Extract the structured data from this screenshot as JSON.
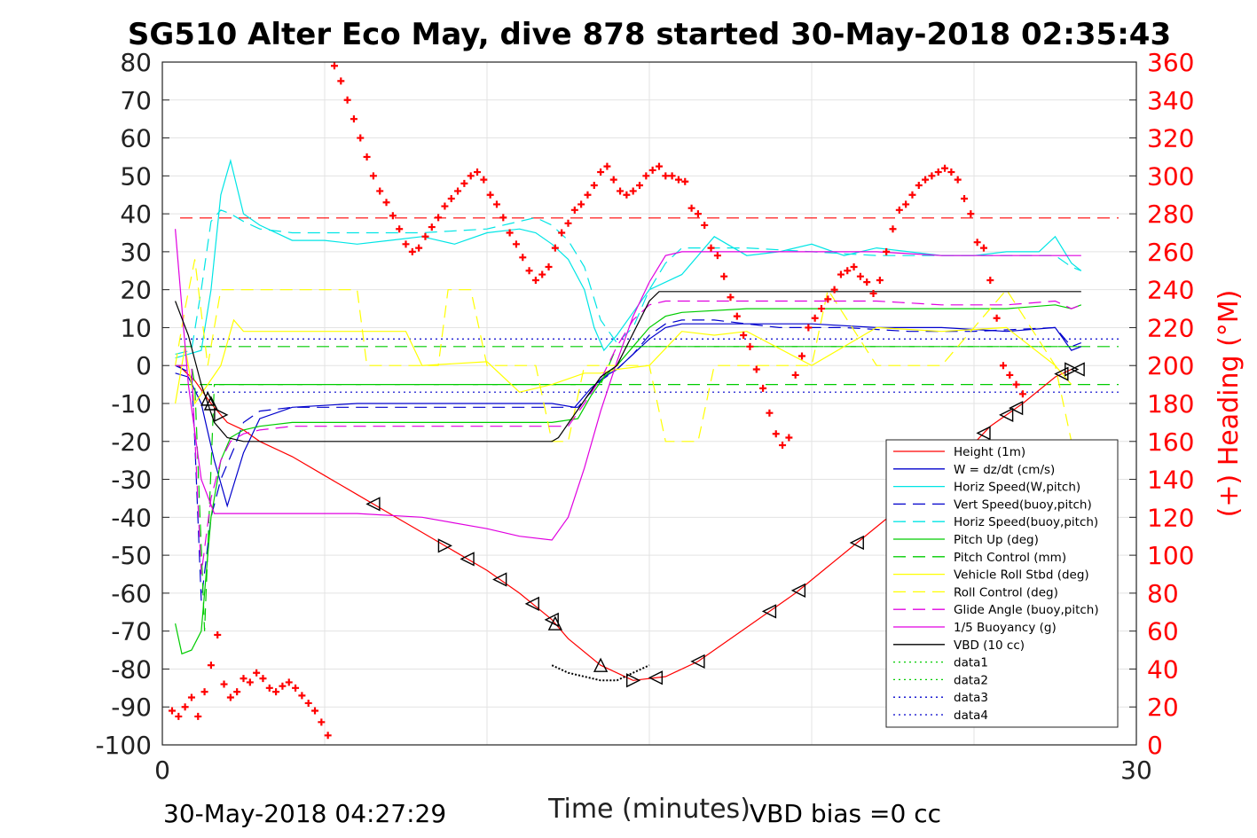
{
  "chart_data": {
    "type": "line",
    "title": "SG510 Alter Eco May, dive 878 started 30-May-2018 02:35:43",
    "xlabel": "Time (minutes)",
    "ylabel": "",
    "y2label": "(+) Heading (°M)",
    "xlim": [
      0,
      30
    ],
    "ylim": [
      -100,
      80
    ],
    "y2lim": [
      0,
      360
    ],
    "x_ticks": [
      "0",
      "30"
    ],
    "y_ticks": [
      "80",
      "70",
      "60",
      "50",
      "40",
      "30",
      "20",
      "10",
      "0",
      "-10",
      "-20",
      "-30",
      "-40",
      "-50",
      "-60",
      "-70",
      "-80",
      "-90",
      "-100"
    ],
    "y2_ticks": [
      "360",
      "340",
      "320",
      "300",
      "280",
      "260",
      "240",
      "220",
      "200",
      "180",
      "160",
      "140",
      "120",
      "100",
      "80",
      "60",
      "40",
      "20",
      "0"
    ],
    "footer_left": "30-May-2018 04:27:29",
    "footer_right": "VBD bias =0 cc",
    "grid": true,
    "legend_position": "bottom-right",
    "colors": {
      "red": "#ff0000",
      "blue": "#0000cc",
      "cyan": "#00e5e5",
      "green": "#00cc00",
      "yellow": "#ffff00",
      "magenta": "#e000e0",
      "black": "#000000"
    },
    "reference_lines": [
      {
        "y": 7,
        "color": "#0000cc",
        "style": "dotted"
      },
      {
        "y": -7,
        "color": "#0000cc",
        "style": "dotted"
      },
      {
        "y": 5,
        "color": "#00cc00",
        "style": "dashed"
      },
      {
        "y": -5,
        "color": "#00cc00",
        "style": "dashed"
      },
      {
        "y": 38.9,
        "color": "#ff0000",
        "style": "dashed"
      }
    ],
    "series": [
      {
        "name": "Height (1m)",
        "color": "#ff0000",
        "style": "solid",
        "axis": "left",
        "x": [
          0.5,
          1.0,
          1.5,
          2.0,
          2.5,
          3.0,
          4.0,
          5.0,
          6.0,
          7.0,
          8.0,
          9.0,
          10.0,
          11.0,
          12.0,
          12.5,
          13.5,
          14.5,
          15.5,
          16.5,
          17.5,
          18.5,
          19.5,
          20.5,
          21.5,
          22.5,
          23.5,
          24.5,
          25.5,
          26.5,
          27.5,
          28.0
        ],
        "y": [
          0,
          -4,
          -10,
          -15,
          -17,
          -20,
          -24,
          -29,
          -34,
          -39,
          -44,
          -49,
          -54,
          -60,
          -67,
          -72,
          -79,
          -83,
          -82,
          -78,
          -72,
          -66,
          -60,
          -53,
          -46,
          -39,
          -33,
          -25,
          -16,
          -10,
          -3,
          -1
        ]
      },
      {
        "name": "W = dz/dt (cm/s)",
        "color": "#0000cc",
        "style": "solid",
        "axis": "left",
        "x": [
          0.4,
          0.8,
          1.2,
          1.6,
          2.0,
          2.5,
          3.0,
          4.0,
          6.0,
          8.0,
          10.0,
          12.0,
          12.7,
          13.2,
          13.6,
          14.0,
          14.5,
          15.0,
          15.5,
          16.0,
          17.0,
          18.0,
          20.0,
          22.0,
          24.0,
          26.0,
          27.5,
          28.0,
          28.3
        ],
        "y": [
          -2,
          -3,
          -10,
          -25,
          -37,
          -23,
          -14,
          -11,
          -10,
          -10,
          -10,
          -10,
          -11,
          -6,
          -3,
          -1,
          3,
          7,
          10,
          11,
          11,
          11,
          11,
          10,
          10,
          9,
          10,
          4,
          5
        ]
      },
      {
        "name": "Horiz Speed(W,pitch)",
        "color": "#00e5e5",
        "style": "solid",
        "axis": "left",
        "x": [
          0.4,
          0.8,
          1.2,
          1.5,
          1.8,
          2.1,
          2.5,
          3.0,
          4.0,
          5.0,
          6.0,
          7.0,
          8.0,
          9.0,
          10.0,
          11.0,
          11.5,
          12.0,
          12.5,
          13.0,
          13.3,
          13.6,
          14.0,
          14.5,
          15.0,
          16.0,
          17.0,
          18.0,
          19.0,
          20.0,
          21.0,
          22.0,
          23.0,
          24.0,
          25.0,
          26.0,
          27.0,
          27.5,
          28.0,
          28.3
        ],
        "y": [
          2,
          3,
          4,
          20,
          45,
          54,
          40,
          37,
          33,
          33,
          32,
          33,
          34,
          32,
          35,
          36,
          35,
          32,
          28,
          20,
          10,
          4,
          8,
          14,
          20,
          24,
          34,
          29,
          30,
          32,
          29,
          31,
          30,
          29,
          29,
          30,
          30,
          34,
          27,
          25
        ]
      },
      {
        "name": "Vert Speed(buoy,pitch)",
        "color": "#0000cc",
        "style": "dashed",
        "axis": "left",
        "x": [
          0.4,
          0.9,
          1.0,
          1.2,
          1.5,
          1.8,
          2.2,
          2.5,
          3.0,
          4.0,
          6.0,
          8.0,
          10.0,
          12.0,
          12.8,
          13.5,
          14.0,
          14.5,
          15.0,
          15.5,
          16.0,
          17.0,
          19.0,
          21.0,
          23.0,
          25.0,
          27.5,
          28.0,
          28.3
        ],
        "y": [
          0,
          -2,
          -20,
          -62,
          -40,
          -30,
          -22,
          -15,
          -12,
          -11,
          -11,
          -11,
          -11,
          -11,
          -11,
          -4,
          -1,
          3,
          8,
          11,
          12,
          12,
          10,
          10,
          9,
          9,
          10,
          5,
          6
        ]
      },
      {
        "name": "Horiz Speed(buoy,pitch)",
        "color": "#00e5e5",
        "style": "dashed",
        "axis": "left",
        "x": [
          0.4,
          0.9,
          1.2,
          1.5,
          1.8,
          2.1,
          2.5,
          3.0,
          4.0,
          6.0,
          8.0,
          10.0,
          11.5,
          12.0,
          12.5,
          13.0,
          13.5,
          14.0,
          14.5,
          15.0,
          15.5,
          16.0,
          18.0,
          20.0,
          22.0,
          24.0,
          26.0,
          27.5,
          28.0,
          28.3
        ],
        "y": [
          3,
          4,
          20,
          38,
          41,
          40,
          38,
          36,
          35,
          35,
          35,
          36,
          39,
          37,
          33,
          26,
          12,
          6,
          10,
          20,
          27,
          31,
          31,
          30,
          29,
          29,
          29,
          29,
          26,
          25
        ]
      },
      {
        "name": "Pitch Up (deg)",
        "color": "#00cc00",
        "style": "solid",
        "axis": "left",
        "x": [
          0.4,
          0.6,
          0.9,
          1.2,
          1.5,
          1.8,
          2.1,
          2.5,
          3.0,
          4.0,
          6.0,
          8.0,
          10.0,
          12.0,
          12.8,
          13.2,
          13.6,
          14.0,
          14.5,
          15.0,
          15.5,
          16.0,
          18.0,
          20.0,
          22.0,
          24.0,
          26.0,
          27.5,
          28.0,
          28.3
        ],
        "y": [
          -68,
          -76,
          -75,
          -70,
          -40,
          -25,
          -19,
          -17,
          -16,
          -15,
          -15,
          -15,
          -15,
          -15,
          -14,
          -8,
          -3,
          0,
          5,
          10,
          13,
          14,
          15,
          15,
          15,
          15,
          15,
          16,
          15,
          16
        ]
      },
      {
        "name": "Pitch Control (mm)",
        "color": "#00cc00",
        "style": "dashed",
        "axis": "left",
        "x": [
          0.4,
          0.9,
          1.0,
          1.3,
          1.6,
          2.0,
          2.5,
          12.0,
          12.5,
          13.5,
          14.0,
          28.3
        ],
        "y": [
          0,
          0,
          -5,
          -70,
          -5,
          -5,
          -5,
          -5,
          -5,
          -5,
          5,
          5
        ]
      },
      {
        "name": "Vehicle Roll Stbd (deg)",
        "color": "#ffff00",
        "style": "solid",
        "axis": "left",
        "x": [
          0.4,
          0.7,
          1.0,
          1.4,
          1.8,
          2.2,
          2.5,
          3.0,
          4.0,
          6.0,
          7.5,
          8.0,
          10.0,
          11.0,
          12.0,
          13.0,
          13.5,
          14.0,
          15.0,
          16.0,
          17.0,
          18.0,
          20.0,
          22.0,
          24.0,
          26.0,
          27.5,
          28.0
        ],
        "y": [
          -10,
          5,
          -10,
          -5,
          0,
          12,
          9,
          9,
          9,
          9,
          9,
          0,
          1,
          -7,
          -5,
          -2,
          -2,
          -1,
          0,
          9,
          8,
          9,
          0,
          10,
          9,
          10,
          0,
          -5
        ]
      },
      {
        "name": "Roll Control (deg)",
        "color": "#ffff00",
        "style": "dashed",
        "axis": "left",
        "x": [
          0.4,
          0.7,
          1.0,
          1.4,
          1.8,
          2.2,
          2.5,
          6.0,
          6.3,
          8.5,
          8.8,
          9.5,
          10.0,
          11.5,
          12.0,
          12.5,
          13.0,
          15.0,
          15.5,
          16.5,
          17.0,
          20.0,
          20.5,
          22.0,
          24.0,
          26.0,
          27.5,
          28.0
        ],
        "y": [
          0,
          15,
          28,
          0,
          20,
          20,
          20,
          20,
          0,
          0,
          20,
          20,
          0,
          0,
          -20,
          -20,
          0,
          0,
          -20,
          -20,
          0,
          0,
          20,
          0,
          0,
          20,
          0,
          -20
        ]
      },
      {
        "name": "Glide Angle (buoy,pitch)",
        "color": "#e000e0",
        "style": "dashed",
        "axis": "left",
        "x": [
          0.4,
          0.9,
          1.2,
          1.5,
          1.8,
          2.1,
          2.5,
          3.0,
          4.0,
          6.0,
          8.0,
          10.0,
          12.0,
          12.5,
          13.0,
          13.6,
          14.0,
          14.5,
          15.0,
          15.5,
          16.0,
          18.0,
          20.0,
          22.0,
          24.0,
          26.0,
          27.5,
          28.0,
          28.3
        ],
        "y": [
          0,
          0,
          -55,
          -35,
          -25,
          -20,
          -18,
          -17,
          -16,
          -16,
          -16,
          -16,
          -16,
          -16,
          -10,
          -2,
          5,
          12,
          16,
          17,
          17,
          17,
          17,
          17,
          16,
          16,
          17,
          15,
          16
        ]
      },
      {
        "name": "1/5 Buoyancy (g)",
        "color": "#e000e0",
        "style": "solid",
        "axis": "left",
        "x": [
          0.4,
          0.8,
          1.2,
          1.6,
          2.0,
          2.3,
          2.5,
          3.0,
          4.0,
          6.0,
          8.0,
          10.0,
          11.0,
          12.0,
          12.5,
          13.0,
          13.5,
          14.0,
          14.5,
          15.0,
          15.5,
          16.0,
          18.0,
          20.0,
          22.0,
          24.0,
          26.0,
          28.0,
          28.3
        ],
        "y": [
          36,
          -5,
          -30,
          -39,
          -39,
          -39,
          -39,
          -39,
          -39,
          -39,
          -40,
          -43,
          -45,
          -46,
          -40,
          -27,
          -12,
          1,
          13,
          22,
          29,
          30,
          30,
          30,
          30,
          29,
          29,
          29,
          29
        ]
      },
      {
        "name": "VBD (10 cc)",
        "color": "#000000",
        "style": "solid",
        "axis": "left",
        "x": [
          0.4,
          0.8,
          1.2,
          1.6,
          2.0,
          2.5,
          3.0,
          6.0,
          9.0,
          12.0,
          12.2,
          13.5,
          14.0,
          15.0,
          15.3,
          18.0,
          22.0,
          26.0,
          28.3
        ],
        "y": [
          17,
          8,
          -5,
          -15,
          -19,
          -20,
          -20,
          -20,
          -20,
          -20,
          -19,
          -3,
          0,
          17,
          19.5,
          19.5,
          19.5,
          19.5,
          19.5
        ]
      },
      {
        "name": "data1",
        "color": "#00cc00",
        "style": "dotted",
        "axis": "left",
        "x": [],
        "y": []
      },
      {
        "name": "data2",
        "color": "#00cc00",
        "style": "dotted",
        "axis": "left",
        "x": [],
        "y": []
      },
      {
        "name": "data3",
        "color": "#0000cc",
        "style": "dotted",
        "axis": "left",
        "x": [],
        "y": []
      },
      {
        "name": "data4",
        "color": "#0000cc",
        "style": "dotted",
        "axis": "left",
        "x": [],
        "y": []
      }
    ],
    "bottom_trace": {
      "color": "#000000",
      "style": "dotted",
      "axis": "left",
      "x": [
        12.0,
        12.5,
        13.0,
        13.5,
        14.0,
        14.5,
        15.0
      ],
      "y": [
        -79,
        -81,
        -82,
        -83,
        -83,
        -81,
        -79
      ]
    },
    "heading": {
      "color": "#ff0000",
      "marker": "+",
      "axis": "right",
      "x": [
        0.3,
        0.5,
        0.7,
        0.9,
        1.1,
        1.3,
        1.5,
        1.7,
        1.9,
        2.1,
        2.3,
        2.5,
        2.7,
        2.9,
        3.1,
        3.3,
        3.5,
        3.7,
        3.9,
        4.1,
        4.3,
        4.5,
        4.7,
        4.9,
        5.1,
        5.3,
        5.5,
        5.7,
        5.9,
        6.1,
        6.3,
        6.5,
        6.7,
        6.9,
        7.1,
        7.3,
        7.5,
        7.7,
        7.9,
        8.1,
        8.3,
        8.5,
        8.7,
        8.9,
        9.1,
        9.3,
        9.5,
        9.7,
        9.9,
        10.1,
        10.3,
        10.5,
        10.7,
        10.9,
        11.1,
        11.3,
        11.5,
        11.7,
        11.9,
        12.1,
        12.3,
        12.5,
        12.7,
        12.9,
        13.1,
        13.3,
        13.5,
        13.7,
        13.9,
        14.1,
        14.3,
        14.5,
        14.7,
        14.9,
        15.1,
        15.3,
        15.5,
        15.7,
        15.9,
        16.1,
        16.3,
        16.5,
        16.7,
        16.9,
        17.1,
        17.3,
        17.5,
        17.7,
        17.9,
        18.1,
        18.3,
        18.5,
        18.7,
        18.9,
        19.1,
        19.3,
        19.5,
        19.7,
        19.9,
        20.1,
        20.3,
        20.5,
        20.7,
        20.9,
        21.1,
        21.3,
        21.5,
        21.7,
        21.9,
        22.1,
        22.3,
        22.5,
        22.7,
        22.9,
        23.1,
        23.3,
        23.5,
        23.7,
        23.9,
        24.1,
        24.3,
        24.5,
        24.7,
        24.9,
        25.1,
        25.3,
        25.5,
        25.7,
        25.9,
        26.1,
        26.3,
        26.5
      ],
      "y": [
        18,
        15,
        20,
        25,
        15,
        28,
        42,
        58,
        32,
        25,
        28,
        35,
        33,
        38,
        35,
        30,
        28,
        31,
        33,
        30,
        26,
        22,
        18,
        12,
        5,
        358,
        350,
        340,
        330,
        320,
        310,
        300,
        292,
        286,
        279,
        272,
        264,
        260,
        262,
        268,
        273,
        278,
        284,
        288,
        292,
        296,
        300,
        302,
        298,
        290,
        285,
        278,
        270,
        264,
        257,
        250,
        245,
        248,
        252,
        262,
        270,
        275,
        282,
        285,
        290,
        295,
        302,
        305,
        298,
        292,
        290,
        292,
        295,
        300,
        303,
        305,
        300,
        300,
        298,
        297,
        283,
        280,
        274,
        262,
        258,
        247,
        236,
        226,
        216,
        210,
        198,
        188,
        175,
        164,
        158,
        162,
        195,
        205,
        220,
        225,
        230,
        235,
        240,
        248,
        250,
        252,
        247,
        244,
        238,
        245,
        260,
        272,
        282,
        285,
        290,
        295,
        298,
        300,
        302,
        304,
        302,
        298,
        288,
        280,
        265,
        262,
        245,
        225,
        200,
        195,
        190,
        185
      ]
    }
  }
}
